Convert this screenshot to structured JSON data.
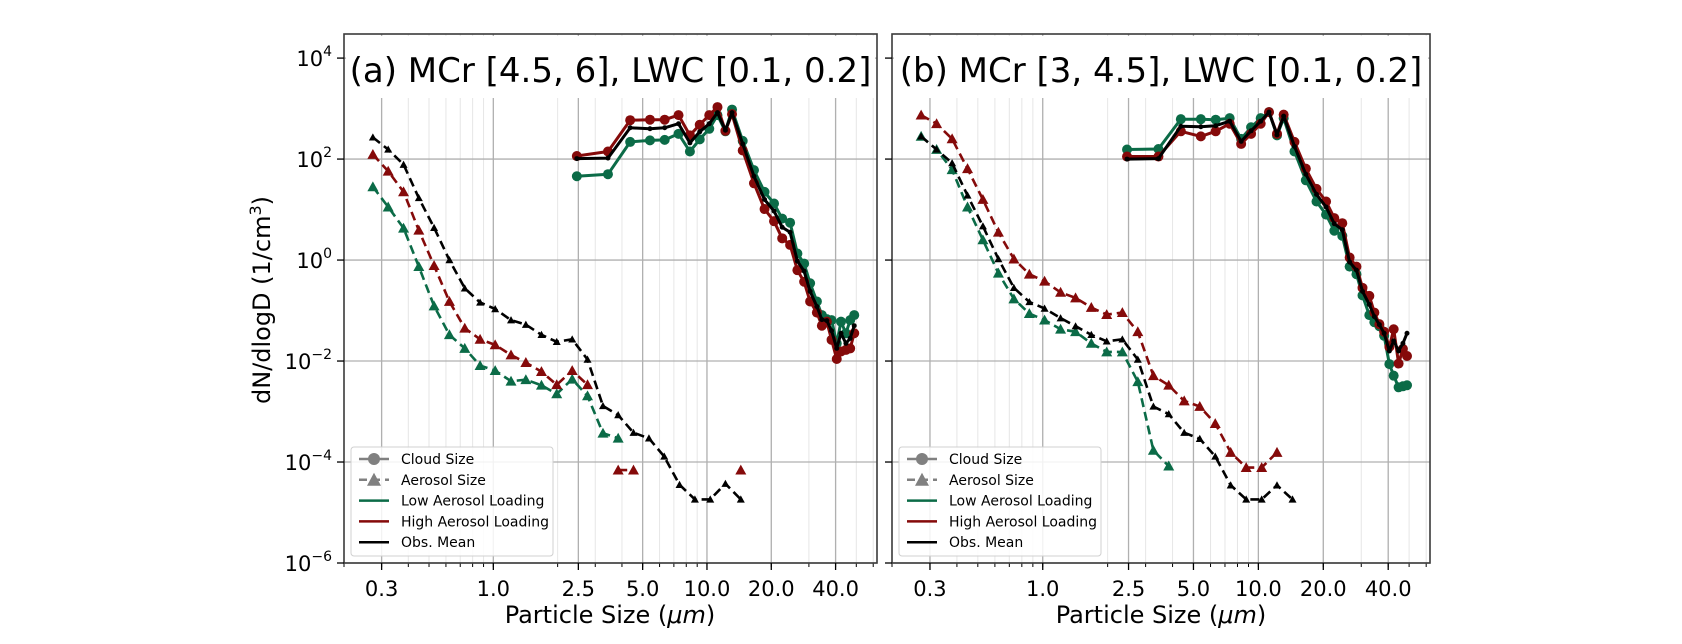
{
  "figure": {
    "ylabel_main": "dN/dlogD (1/cm",
    "ylabel_sup": "3",
    "ylabel_close": ")",
    "xlabel_main": "Particle Size (",
    "xlabel_unit": "μm",
    "xlabel_close": ")"
  },
  "colors": {
    "low": "#0b6b47",
    "high": "#850a0a",
    "mean": "#000000",
    "legend_marker": "#808080"
  },
  "legend": {
    "entries": [
      "Cloud Size",
      "Aerosol Size",
      "Low Aerosol Loading",
      "High Aerosol Loading",
      "Obs. Mean"
    ]
  },
  "chart_data": [
    {
      "type": "line",
      "title": "(a) MCr [4.5, 6], LWC [0.1, 0.2]",
      "xlabel": "Particle Size (μm)",
      "ylabel": "dN/dlogD (1/cm³)",
      "xscale": "log",
      "yscale": "log",
      "xlim": [
        0.2,
        62.5
      ],
      "ylim": [
        1e-06,
        30000
      ],
      "xticks": [
        0.3,
        1.0,
        2.5,
        5.0,
        10.0,
        20.0,
        40.0
      ],
      "xtick_labels": [
        "0.3",
        "1.0",
        "2.5",
        "5.0",
        "10.0",
        "20.0",
        "40.0"
      ],
      "yticks": [
        10000.0,
        100.0,
        1.0,
        0.01,
        0.0001,
        1e-06
      ],
      "ytick_labels": [
        [
          "10",
          "4"
        ],
        [
          "10",
          "2"
        ],
        [
          "10",
          "0"
        ],
        [
          "10",
          "−2"
        ],
        [
          "10",
          "−4"
        ],
        [
          "10",
          "−6"
        ]
      ],
      "grid": true,
      "legend_position": "lower-left",
      "aerosol_x": [
        0.273,
        0.322,
        0.38,
        0.448,
        0.528,
        0.623,
        0.735,
        0.867,
        1.02,
        1.21,
        1.42,
        1.68,
        1.98,
        2.34,
        2.76,
        3.26,
        3.84,
        4.53,
        5.35,
        6.31,
        7.44,
        8.78,
        10.36,
        12.2,
        14.4
      ],
      "cloud_x": [
        2.46,
        3.44,
        4.37,
        5.41,
        6.34,
        7.36,
        8.32,
        9.25,
        10.25,
        11.2,
        12.2,
        13.1,
        14.7,
        16.6,
        18.6,
        20.6,
        22.5,
        24.5,
        26.5,
        28.5,
        30.4,
        32.7,
        34.5,
        36.4,
        38.3,
        40.5,
        42.4,
        44.7,
        46.8,
        48.9
      ],
      "series": [
        {
          "name": "Aerosol Size - Low Aerosol Loading",
          "kind": "aerosol",
          "group": "low",
          "log10_y": [
            1.45,
            1.05,
            0.63,
            -0.13,
            -0.91,
            -1.48,
            -1.75,
            -2.09,
            -2.19,
            -2.4,
            -2.37,
            -2.48,
            -2.65,
            -2.36,
            -2.69,
            -3.43,
            -3.53,
            null,
            null,
            null,
            null,
            null,
            null,
            null,
            null
          ]
        },
        {
          "name": "Aerosol Size - High Aerosol Loading",
          "kind": "aerosol",
          "group": "high",
          "log10_y": [
            2.09,
            1.76,
            1.35,
            0.59,
            -0.11,
            -0.82,
            -1.35,
            -1.57,
            -1.68,
            -1.88,
            -2.03,
            -2.21,
            -2.47,
            -2.19,
            -2.47,
            null,
            -4.16,
            -4.16,
            null,
            null,
            null,
            null,
            null,
            null,
            -4.16
          ]
        },
        {
          "name": "Aerosol Size - Obs. Mean",
          "kind": "aerosol",
          "group": "mean",
          "log10_y": [
            2.43,
            2.19,
            1.89,
            1.23,
            0.64,
            0.0,
            -0.56,
            -0.84,
            -0.97,
            -1.19,
            -1.28,
            -1.48,
            -1.62,
            -1.57,
            -1.97,
            -2.89,
            -3.07,
            -3.42,
            -3.53,
            -3.89,
            -4.45,
            -4.74,
            -4.74,
            -4.43,
            -4.74
          ]
        },
        {
          "name": "Cloud Size - Low Aerosol Loading",
          "kind": "cloud",
          "group": "low",
          "log10_y": [
            1.66,
            1.7,
            2.34,
            2.37,
            2.38,
            2.5,
            2.15,
            2.39,
            2.6,
            2.87,
            2.55,
            2.98,
            2.36,
            1.78,
            1.35,
            1.12,
            0.82,
            0.74,
            0.13,
            -0.07,
            -0.46,
            -0.82,
            -1.09,
            -1.17,
            -1.19,
            -1.65,
            -1.22,
            -1.45,
            -1.19,
            -1.09
          ]
        },
        {
          "name": "Cloud Size - High Aerosol Loading",
          "kind": "cloud",
          "group": "high",
          "log10_y": [
            2.06,
            2.15,
            2.77,
            2.78,
            2.78,
            2.87,
            2.47,
            2.68,
            2.87,
            3.03,
            2.56,
            2.89,
            2.17,
            1.52,
            1.01,
            0.77,
            0.43,
            0.3,
            -0.2,
            -0.43,
            -0.82,
            -1.04,
            -1.3,
            -1.22,
            -1.58,
            -1.96,
            -1.81,
            -1.78,
            -1.75,
            -1.45
          ]
        },
        {
          "name": "Cloud Size - Obs. Mean",
          "kind": "cloud",
          "group": "mean",
          "log10_y": [
            2.01,
            2.02,
            2.62,
            2.6,
            2.62,
            2.7,
            2.32,
            2.54,
            2.7,
            2.92,
            2.57,
            2.92,
            2.3,
            1.66,
            1.2,
            0.97,
            0.65,
            0.55,
            -0.02,
            -0.22,
            -0.62,
            -0.92,
            -1.18,
            -1.2,
            -1.4,
            -1.75,
            -1.45,
            -1.65,
            -1.55,
            -1.3
          ]
        }
      ]
    },
    {
      "type": "line",
      "title": "(b) MCr [3, 4.5], LWC [0.1, 0.2]",
      "xlabel": "Particle Size (μm)",
      "ylabel": "dN/dlogD (1/cm³)",
      "xscale": "log",
      "yscale": "log",
      "xlim": [
        0.2,
        62.5
      ],
      "ylim": [
        1e-06,
        30000
      ],
      "xticks": [
        0.3,
        1.0,
        2.5,
        5.0,
        10.0,
        20.0,
        40.0
      ],
      "xtick_labels": [
        "0.3",
        "1.0",
        "2.5",
        "5.0",
        "10.0",
        "20.0",
        "40.0"
      ],
      "yticks": [
        10000.0,
        100.0,
        1.0,
        0.01,
        0.0001,
        1e-06
      ],
      "ytick_labels": [],
      "grid": true,
      "legend_position": "lower-left",
      "aerosol_x": [
        0.273,
        0.322,
        0.38,
        0.448,
        0.528,
        0.623,
        0.735,
        0.867,
        1.02,
        1.21,
        1.42,
        1.68,
        1.98,
        2.34,
        2.76,
        3.26,
        3.84,
        4.53,
        5.35,
        6.31,
        7.44,
        8.78,
        10.36,
        12.2,
        14.4
      ],
      "cloud_x": [
        2.46,
        3.44,
        4.37,
        5.41,
        6.34,
        7.36,
        8.32,
        9.25,
        10.25,
        11.2,
        12.2,
        13.1,
        14.7,
        16.6,
        18.6,
        20.6,
        22.5,
        24.5,
        26.5,
        28.5,
        30.4,
        32.7,
        34.5,
        36.4,
        38.3,
        40.5,
        42.4,
        44.7,
        46.8,
        48.9
      ],
      "series": [
        {
          "name": "Aerosol Size - Low Aerosol Loading",
          "kind": "aerosol",
          "group": "low",
          "log10_y": [
            2.45,
            2.19,
            1.79,
            1.05,
            0.4,
            -0.26,
            -0.77,
            -1.06,
            -1.19,
            -1.37,
            -1.42,
            -1.65,
            -1.82,
            -1.82,
            -2.41,
            -3.77,
            -4.08,
            null,
            null,
            null,
            null,
            null,
            null,
            null,
            null
          ]
        },
        {
          "name": "Aerosol Size - High Aerosol Loading",
          "kind": "aerosol",
          "group": "high",
          "log10_y": [
            2.87,
            2.7,
            2.4,
            1.81,
            1.2,
            0.55,
            0.02,
            -0.28,
            -0.42,
            -0.64,
            -0.75,
            -0.94,
            -1.08,
            -1.04,
            -1.42,
            -2.29,
            -2.48,
            -2.79,
            -2.9,
            -3.24,
            -3.81,
            -4.11,
            -4.11,
            -3.81,
            null
          ]
        },
        {
          "name": "Aerosol Size - Obs. Mean",
          "kind": "aerosol",
          "group": "mean",
          "log10_y": [
            2.45,
            2.19,
            1.92,
            1.28,
            0.67,
            0.02,
            -0.55,
            -0.83,
            -0.96,
            -1.15,
            -1.31,
            -1.48,
            -1.61,
            -1.57,
            -1.97,
            -2.9,
            -3.05,
            -3.42,
            -3.54,
            -3.89,
            -4.46,
            -4.74,
            -4.74,
            -4.46,
            -4.74
          ]
        },
        {
          "name": "Cloud Size - Low Aerosol Loading",
          "kind": "cloud",
          "group": "low",
          "log10_y": [
            2.19,
            2.2,
            2.79,
            2.79,
            2.78,
            2.81,
            2.4,
            2.63,
            2.81,
            2.93,
            2.47,
            2.81,
            2.15,
            1.58,
            1.16,
            0.9,
            0.58,
            0.48,
            -0.13,
            -0.28,
            -0.7,
            -1.09,
            -1.23,
            -1.31,
            -1.5,
            -2.06,
            -2.29,
            -2.52,
            -2.5,
            -2.48
          ]
        },
        {
          "name": "Cloud Size - High Aerosol Loading",
          "kind": "cloud",
          "group": "high",
          "log10_y": [
            2.05,
            2.05,
            2.55,
            2.45,
            2.55,
            2.7,
            2.3,
            2.5,
            2.7,
            2.93,
            2.5,
            2.88,
            2.34,
            1.81,
            1.41,
            1.16,
            0.83,
            0.73,
            0.05,
            -0.13,
            -0.55,
            -0.71,
            -1.04,
            -1.27,
            -1.42,
            -1.72,
            -1.37,
            -2.05,
            -1.76,
            -1.9
          ]
        },
        {
          "name": "Cloud Size - Obs. Mean",
          "kind": "cloud",
          "group": "mean",
          "log10_y": [
            2.0,
            2.01,
            2.65,
            2.64,
            2.66,
            2.75,
            2.35,
            2.56,
            2.75,
            2.93,
            2.48,
            2.85,
            2.25,
            1.7,
            1.3,
            1.05,
            0.72,
            0.6,
            -0.04,
            -0.2,
            -0.62,
            -0.88,
            -1.12,
            -1.28,
            -1.45,
            -1.8,
            -1.6,
            -1.8,
            -1.65,
            -1.45
          ]
        }
      ]
    }
  ]
}
